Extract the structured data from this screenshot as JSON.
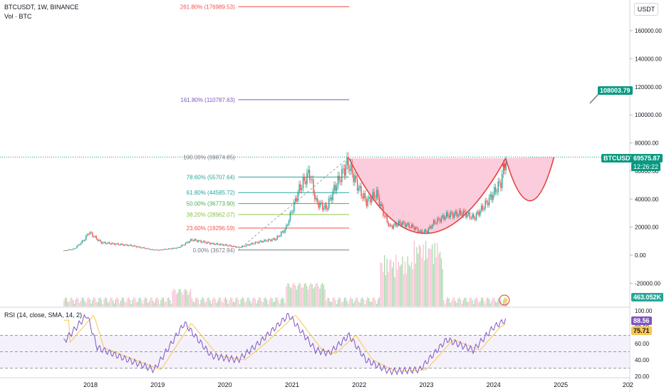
{
  "header": {
    "symbol_line": "BTCUSDT, 1W, BINANCE",
    "vol_line": "Vol · BTC",
    "rsi_line": "RSI (14, close, SMA, 14, 2)",
    "currency_button": "USDT"
  },
  "badges": {
    "target_value": "108003.79",
    "ticker": "BTCUSDT",
    "last_price": "69575.87",
    "countdown": "12:26:22",
    "volume": "463.052K",
    "rsi": "88.56",
    "rsi_ma": "75.71"
  },
  "colors": {
    "up": "#26a69a",
    "down": "#ef5350",
    "bowl": "#f8bbd0",
    "bowl_line": "#e53935",
    "rsi": "#7e57c2",
    "rsi_ma": "#f9c74f",
    "green_badge": "#089981",
    "fib_purple": "#7e57c2"
  },
  "chart_data": [
    {
      "type": "candlestick",
      "name": "BTCUSDT weekly price",
      "x_ticks": [
        "2018",
        "2019",
        "2020",
        "2021",
        "2022",
        "2023",
        "2024",
        "2025",
        "202"
      ],
      "y_ticks": [
        "160000.00",
        "140000.00",
        "120000.00",
        "100000.00",
        "80000.00",
        "60000.00",
        "40000.00",
        "20000.00",
        "0.00",
        "-20000.00"
      ],
      "ylim": [
        -20000,
        170000
      ],
      "series_points": [
        {
          "t": 2017.58,
          "y": 3000
        },
        {
          "t": 2017.75,
          "y": 4500
        },
        {
          "t": 2017.9,
          "y": 11000
        },
        {
          "t": 2017.97,
          "y": 16500
        },
        {
          "t": 2018.05,
          "y": 13000
        },
        {
          "t": 2018.15,
          "y": 9000
        },
        {
          "t": 2018.35,
          "y": 8000
        },
        {
          "t": 2018.6,
          "y": 6800
        },
        {
          "t": 2018.9,
          "y": 4000
        },
        {
          "t": 2019.0,
          "y": 3600
        },
        {
          "t": 2019.3,
          "y": 5300
        },
        {
          "t": 2019.5,
          "y": 11000
        },
        {
          "t": 2019.8,
          "y": 8200
        },
        {
          "t": 2020.0,
          "y": 7200
        },
        {
          "t": 2020.2,
          "y": 5500
        },
        {
          "t": 2020.5,
          "y": 9500
        },
        {
          "t": 2020.75,
          "y": 11500
        },
        {
          "t": 2020.9,
          "y": 19000
        },
        {
          "t": 2021.0,
          "y": 33000
        },
        {
          "t": 2021.1,
          "y": 47000
        },
        {
          "t": 2021.25,
          "y": 59000
        },
        {
          "t": 2021.35,
          "y": 38000
        },
        {
          "t": 2021.5,
          "y": 33000
        },
        {
          "t": 2021.62,
          "y": 47000
        },
        {
          "t": 2021.82,
          "y": 66000
        },
        {
          "t": 2021.9,
          "y": 57000
        },
        {
          "t": 2022.0,
          "y": 46000
        },
        {
          "t": 2022.1,
          "y": 38000
        },
        {
          "t": 2022.25,
          "y": 44000
        },
        {
          "t": 2022.35,
          "y": 30000
        },
        {
          "t": 2022.45,
          "y": 20000
        },
        {
          "t": 2022.6,
          "y": 23000
        },
        {
          "t": 2022.8,
          "y": 20000
        },
        {
          "t": 2022.9,
          "y": 16500
        },
        {
          "t": 2023.0,
          "y": 17000
        },
        {
          "t": 2023.1,
          "y": 23000
        },
        {
          "t": 2023.3,
          "y": 28500
        },
        {
          "t": 2023.55,
          "y": 30000
        },
        {
          "t": 2023.7,
          "y": 26500
        },
        {
          "t": 2023.85,
          "y": 35000
        },
        {
          "t": 2023.97,
          "y": 42500
        },
        {
          "t": 2024.1,
          "y": 52000
        },
        {
          "t": 2024.18,
          "y": 69575
        }
      ]
    },
    {
      "type": "fibonacci",
      "name": "Fib retracement / extension",
      "levels": [
        {
          "label": "261.80% (176989.53)",
          "value": 176989.53,
          "color": "#ef5350"
        },
        {
          "label": "161.80% (110787.63)",
          "value": 110787.63,
          "color": "#7e57c2"
        },
        {
          "label": "100.00% (69874.85)",
          "value": 69874.85,
          "color": "#787b86"
        },
        {
          "label": "78.60% (55707.64)",
          "value": 55707.64,
          "color": "#26a69a"
        },
        {
          "label": "61.80% (44585.72)",
          "value": 44585.72,
          "color": "#26a69a"
        },
        {
          "label": "50.00% (36773.90)",
          "value": 36773.9,
          "color": "#4caf50"
        },
        {
          "label": "38.20% (28962.07)",
          "value": 28962.07,
          "color": "#8bc34a"
        },
        {
          "label": "23.60% (19296.59)",
          "value": 19296.59,
          "color": "#ef5350"
        },
        {
          "label": "0.00% (3672.94)",
          "value": 3672.94,
          "color": "#787b86"
        }
      ]
    },
    {
      "type": "line",
      "name": "RSI (14)",
      "ylim": [
        20,
        100
      ],
      "y_ticks": [
        "100.00",
        "80.00",
        "60.00",
        "40.00",
        "20.00"
      ],
      "bands": [
        70,
        50,
        30
      ],
      "series_points": [
        {
          "t": 2017.58,
          "y": 60
        },
        {
          "t": 2017.95,
          "y": 95
        },
        {
          "t": 2018.1,
          "y": 55
        },
        {
          "t": 2018.5,
          "y": 42
        },
        {
          "t": 2018.95,
          "y": 28
        },
        {
          "t": 2019.4,
          "y": 85
        },
        {
          "t": 2019.8,
          "y": 45
        },
        {
          "t": 2020.2,
          "y": 40
        },
        {
          "t": 2020.5,
          "y": 60
        },
        {
          "t": 2020.95,
          "y": 95
        },
        {
          "t": 2021.35,
          "y": 52
        },
        {
          "t": 2021.55,
          "y": 48
        },
        {
          "t": 2021.85,
          "y": 70
        },
        {
          "t": 2022.1,
          "y": 40
        },
        {
          "t": 2022.45,
          "y": 26
        },
        {
          "t": 2022.9,
          "y": 28
        },
        {
          "t": 2023.3,
          "y": 65
        },
        {
          "t": 2023.7,
          "y": 52
        },
        {
          "t": 2024.0,
          "y": 80
        },
        {
          "t": 2024.18,
          "y": 88.56
        }
      ]
    }
  ]
}
